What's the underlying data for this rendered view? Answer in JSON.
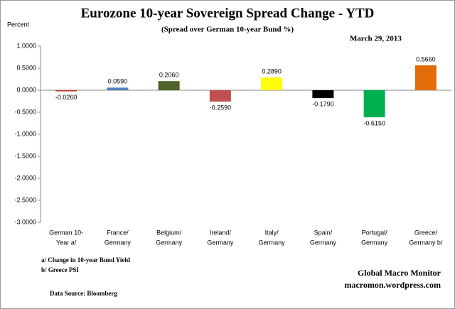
{
  "chart_data": {
    "type": "bar",
    "title": "Eurozone 10-year Sovereign Spread Change - YTD",
    "subtitle": "(Spread over German 10-year Bund %)",
    "date": "March 29,  2013",
    "y_label": "Percent",
    "categories": [
      [
        "German     10-",
        "Year a/"
      ],
      [
        "France/",
        "Germany"
      ],
      [
        "Belgium/",
        "Germany"
      ],
      [
        "Ireland/",
        "Germany"
      ],
      [
        "Italy/",
        "Germany"
      ],
      [
        "Spain/",
        "Germany"
      ],
      [
        "Portugal/",
        "Germany"
      ],
      [
        "Greece/",
        "Germany b/"
      ]
    ],
    "values": [
      -0.026,
      0.059,
      0.206,
      -0.259,
      0.289,
      -0.179,
      -0.615,
      0.566
    ],
    "value_labels": [
      "-0.0260",
      "0.0590",
      "0.2060",
      "-0.2590",
      "0.2890",
      "-0.1790",
      "-0.6150",
      "0.5660"
    ],
    "colors": [
      "#c0392b",
      "#4f81bd",
      "#4f6228",
      "#c0504d",
      "#ffff00",
      "#000000",
      "#00b050",
      "#e36c09"
    ],
    "ylim": [
      -3,
      1
    ],
    "yticks": [
      {
        "value": 1,
        "label": "1.0000"
      },
      {
        "value": 0.5,
        "label": "0.5000"
      },
      {
        "value": 0,
        "label": "0.0000"
      },
      {
        "value": -0.5,
        "label": "-0.5000"
      },
      {
        "value": -1,
        "label": "-1.0000"
      },
      {
        "value": -1.5,
        "label": "-1.5000"
      },
      {
        "value": -2,
        "label": "-2.0000"
      },
      {
        "value": -2.5,
        "label": "-2.5000"
      },
      {
        "value": -3,
        "label": "-3.0000"
      }
    ],
    "grid": false,
    "notes": [
      "a/  Change in 10-year Bund Yield",
      "b/  Greece PSI"
    ],
    "source": "Data Source:  Bloomberg",
    "credit": [
      "Global Macro Monitor",
      "macromon.wordpress.com"
    ]
  }
}
